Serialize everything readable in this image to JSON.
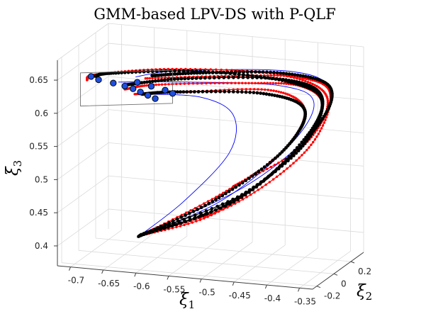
{
  "chart_data": {
    "type": "line",
    "title": "GMM-based LPV-DS with P-QLF",
    "xlabel": "ξ1",
    "ylabel": "ξ2",
    "zlabel": "ξ3",
    "x_ticks": [
      "-0.7",
      "-0.65",
      "-0.6",
      "-0.55",
      "-0.5",
      "-0.45",
      "-0.4",
      "-0.35"
    ],
    "y_ticks": [
      "-0.2",
      "0",
      "0.2"
    ],
    "z_ticks": [
      "0.4",
      "0.45",
      "0.5",
      "0.55",
      "0.6",
      "0.65"
    ],
    "xlim": [
      -0.72,
      -0.33
    ],
    "ylim": [
      -0.25,
      0.35
    ],
    "zlim": [
      0.37,
      0.68
    ],
    "grid": true,
    "view": "3d",
    "series": [
      {
        "color": "#ff0000",
        "marker": "dot",
        "points": [
          {
            "x": -0.5,
            "y": 0.13,
            "z": 0.475
          },
          {
            "x": -0.4,
            "y": 0.18,
            "z": 0.54
          },
          {
            "x": -0.36,
            "y": 0.15,
            "z": 0.62
          },
          {
            "x": -0.42,
            "y": 0.03,
            "z": 0.66
          },
          {
            "x": -0.56,
            "y": -0.13,
            "z": 0.67
          },
          {
            "x": -0.665,
            "y": -0.21,
            "z": 0.66
          },
          {
            "x": -0.68,
            "y": -0.21,
            "z": 0.65
          }
        ]
      },
      {
        "color": "#ff0000",
        "marker": "dot",
        "points": [
          {
            "x": -0.64,
            "y": 0.1,
            "z": 0.39
          },
          {
            "x": -0.53,
            "y": 0.14,
            "z": 0.43
          },
          {
            "x": -0.42,
            "y": 0.18,
            "z": 0.52
          },
          {
            "x": -0.37,
            "y": 0.17,
            "z": 0.6
          },
          {
            "x": -0.39,
            "y": 0.08,
            "z": 0.64
          },
          {
            "x": -0.47,
            "y": 0.0,
            "z": 0.645
          },
          {
            "x": -0.59,
            "y": -0.09,
            "z": 0.64
          },
          {
            "x": -0.63,
            "y": -0.15,
            "z": 0.635
          }
        ]
      },
      {
        "color": "#ff0000",
        "marker": "dot",
        "points": [
          {
            "x": -0.64,
            "y": 0.11,
            "z": 0.39
          },
          {
            "x": -0.51,
            "y": 0.18,
            "z": 0.44
          },
          {
            "x": -0.4,
            "y": 0.22,
            "z": 0.53
          },
          {
            "x": -0.36,
            "y": 0.19,
            "z": 0.62
          },
          {
            "x": -0.4,
            "y": 0.11,
            "z": 0.65
          },
          {
            "x": -0.5,
            "y": 0.03,
            "z": 0.65
          },
          {
            "x": -0.61,
            "y": -0.06,
            "z": 0.645
          }
        ]
      },
      {
        "color": "#ff0000",
        "marker": "dot",
        "points": [
          {
            "x": -0.64,
            "y": 0.09,
            "z": 0.39
          },
          {
            "x": -0.52,
            "y": 0.16,
            "z": 0.46
          },
          {
            "x": -0.43,
            "y": 0.16,
            "z": 0.53
          },
          {
            "x": -0.39,
            "y": 0.12,
            "z": 0.6
          },
          {
            "x": -0.43,
            "y": 0.03,
            "z": 0.635
          },
          {
            "x": -0.55,
            "y": -0.06,
            "z": 0.63
          },
          {
            "x": -0.62,
            "y": -0.11,
            "z": 0.625
          }
        ]
      },
      {
        "color": "#000000",
        "marker": "dot",
        "points": [
          {
            "x": -0.64,
            "y": 0.1,
            "z": 0.39
          },
          {
            "x": -0.52,
            "y": 0.16,
            "z": 0.44
          },
          {
            "x": -0.41,
            "y": 0.2,
            "z": 0.53
          },
          {
            "x": -0.37,
            "y": 0.17,
            "z": 0.61
          },
          {
            "x": -0.41,
            "y": 0.08,
            "z": 0.645
          },
          {
            "x": -0.53,
            "y": -0.03,
            "z": 0.66
          },
          {
            "x": -0.645,
            "y": -0.17,
            "z": 0.66
          },
          {
            "x": -0.67,
            "y": -0.19,
            "z": 0.655
          }
        ]
      },
      {
        "color": "#000000",
        "marker": "dot",
        "points": [
          {
            "x": -0.64,
            "y": 0.11,
            "z": 0.39
          },
          {
            "x": -0.5,
            "y": 0.18,
            "z": 0.45
          },
          {
            "x": -0.4,
            "y": 0.21,
            "z": 0.55
          },
          {
            "x": -0.37,
            "y": 0.16,
            "z": 0.62
          },
          {
            "x": -0.42,
            "y": 0.06,
            "z": 0.65
          },
          {
            "x": -0.55,
            "y": -0.06,
            "z": 0.65
          },
          {
            "x": -0.63,
            "y": -0.13,
            "z": 0.64
          }
        ]
      },
      {
        "color": "#000000",
        "marker": "dot",
        "points": [
          {
            "x": -0.64,
            "y": 0.09,
            "z": 0.39
          },
          {
            "x": -0.53,
            "y": 0.15,
            "z": 0.45
          },
          {
            "x": -0.43,
            "y": 0.16,
            "z": 0.53
          },
          {
            "x": -0.39,
            "y": 0.12,
            "z": 0.6
          },
          {
            "x": -0.44,
            "y": 0.02,
            "z": 0.63
          },
          {
            "x": -0.56,
            "y": -0.07,
            "z": 0.63
          },
          {
            "x": -0.61,
            "y": -0.1,
            "z": 0.625
          }
        ]
      },
      {
        "color": "#000000",
        "marker": "dot",
        "points": [
          {
            "x": -0.64,
            "y": 0.12,
            "z": 0.39
          },
          {
            "x": -0.49,
            "y": 0.2,
            "z": 0.46
          },
          {
            "x": -0.39,
            "y": 0.23,
            "z": 0.56
          },
          {
            "x": -0.36,
            "y": 0.19,
            "z": 0.63
          },
          {
            "x": -0.42,
            "y": 0.1,
            "z": 0.655
          },
          {
            "x": -0.53,
            "y": 0.0,
            "z": 0.655
          },
          {
            "x": -0.6,
            "y": -0.06,
            "z": 0.65
          }
        ]
      },
      {
        "color": "#0000ff",
        "marker": "none",
        "points": [
          {
            "x": -0.64,
            "y": 0.1,
            "z": 0.39
          },
          {
            "x": -0.52,
            "y": 0.15,
            "z": 0.45
          },
          {
            "x": -0.42,
            "y": 0.18,
            "z": 0.54
          },
          {
            "x": -0.38,
            "y": 0.15,
            "z": 0.61
          },
          {
            "x": -0.42,
            "y": 0.06,
            "z": 0.64
          },
          {
            "x": -0.55,
            "y": -0.06,
            "z": 0.645
          },
          {
            "x": -0.64,
            "y": -0.15,
            "z": 0.645
          }
        ]
      },
      {
        "color": "#0000ff",
        "marker": "none",
        "points": [
          {
            "x": -0.64,
            "y": 0.07,
            "z": 0.39
          },
          {
            "x": -0.57,
            "y": 0.08,
            "z": 0.45
          },
          {
            "x": -0.5,
            "y": 0.08,
            "z": 0.53
          },
          {
            "x": -0.49,
            "y": 0.05,
            "z": 0.59
          },
          {
            "x": -0.53,
            "y": -0.02,
            "z": 0.62
          },
          {
            "x": -0.61,
            "y": -0.1,
            "z": 0.625
          }
        ]
      },
      {
        "color": "#0000ff",
        "marker": "none",
        "points": [
          {
            "x": -0.64,
            "y": 0.11,
            "z": 0.39
          },
          {
            "x": -0.49,
            "y": 0.19,
            "z": 0.47
          },
          {
            "x": -0.39,
            "y": 0.22,
            "z": 0.56
          },
          {
            "x": -0.36,
            "y": 0.18,
            "z": 0.63
          },
          {
            "x": -0.41,
            "y": 0.09,
            "z": 0.66
          },
          {
            "x": -0.56,
            "y": -0.05,
            "z": 0.66
          },
          {
            "x": -0.62,
            "y": -0.1,
            "z": 0.65
          }
        ]
      }
    ],
    "attractor_points": [
      {
        "x": -0.675,
        "y": -0.2,
        "z": 0.655
      },
      {
        "x": -0.665,
        "y": -0.19,
        "z": 0.65
      },
      {
        "x": -0.645,
        "y": -0.17,
        "z": 0.645
      },
      {
        "x": -0.63,
        "y": -0.15,
        "z": 0.64
      },
      {
        "x": -0.62,
        "y": -0.13,
        "z": 0.635
      },
      {
        "x": -0.61,
        "y": -0.12,
        "z": 0.63
      },
      {
        "x": -0.6,
        "y": -0.11,
        "z": 0.625
      },
      {
        "x": -0.59,
        "y": -0.1,
        "z": 0.62
      },
      {
        "x": -0.62,
        "y": -0.08,
        "z": 0.64
      },
      {
        "x": -0.6,
        "y": -0.07,
        "z": 0.635
      },
      {
        "x": -0.58,
        "y": -0.06,
        "z": 0.63
      },
      {
        "x": -0.57,
        "y": -0.05,
        "z": 0.625
      }
    ],
    "target_region": {
      "corners": [
        {
          "x": -0.69,
          "y": -0.21,
          "z": 0.66
        },
        {
          "x": -0.57,
          "y": -0.05,
          "z": 0.66
        },
        {
          "x": -0.57,
          "y": -0.05,
          "z": 0.61
        },
        {
          "x": -0.69,
          "y": -0.21,
          "z": 0.61
        }
      ]
    },
    "colors": {
      "demonstrations": "#ff0000",
      "reproductions": "#000000",
      "streamlines": "#0000ff",
      "attractors": "#1f4fe0"
    }
  }
}
